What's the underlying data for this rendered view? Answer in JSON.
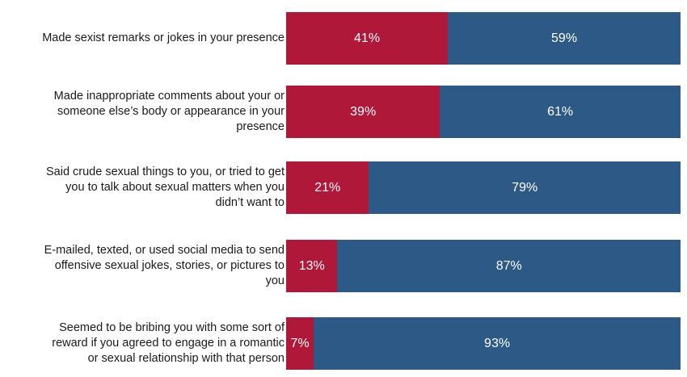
{
  "chart_data": {
    "type": "bar",
    "orientation": "horizontal",
    "stacked": true,
    "categories": [
      "Made sexist remarks or jokes in your presence",
      "Made inappropriate comments about your or someone else’s body or appearance in your presence",
      "Said crude sexual things to you, or tried to get you to talk about sexual matters when you didn’t want to",
      "E-mailed, texted, or used social media to send offensive sexual jokes, stories, or pictures to you",
      "Seemed to be bribing you with some sort of reward if you agreed to engage in a romantic or sexual relationship with that person"
    ],
    "category_lines": [
      [
        "Made sexist remarks or jokes in your presence"
      ],
      [
        "Made inappropriate comments about your or",
        "someone else’s body or appearance in your",
        "presence"
      ],
      [
        "Said crude sexual things to you, or tried to get",
        "you to talk about sexual matters when you",
        "didn’t want to"
      ],
      [
        "E-mailed, texted, or used social media to send",
        "offensive sexual jokes, stories, or pictures to",
        "you"
      ],
      [
        "Seemed to be bribing you with some sort of",
        "reward if you agreed to engage in a romantic",
        "or sexual relationship with that person"
      ]
    ],
    "series": [
      {
        "values": [
          41,
          39,
          21,
          13,
          7
        ],
        "labels": [
          "41%",
          "39%",
          "21%",
          "13%",
          "7%"
        ],
        "color": "#b0183a"
      },
      {
        "values": [
          59,
          61,
          79,
          87,
          93
        ],
        "labels": [
          "59%",
          "61%",
          "79%",
          "87%",
          "93%"
        ],
        "color": "#2d5986"
      }
    ],
    "xlim": [
      0,
      100
    ],
    "title": "",
    "xlabel": "",
    "ylabel": "",
    "grid": false,
    "legend": "none"
  }
}
